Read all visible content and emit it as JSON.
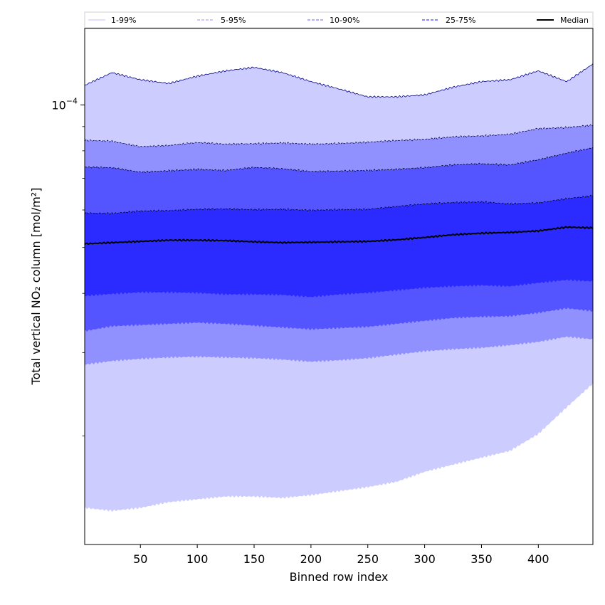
{
  "chart_data": {
    "type": "area",
    "xlabel": "Binned row index",
    "ylabel": "Total vertical NO₂ column [mol/m²]",
    "xlim": [
      1,
      448
    ],
    "ylim": [
      1.18e-05,
      0.000145
    ],
    "yscale": "log",
    "x_ticks": [
      50,
      100,
      150,
      200,
      250,
      300,
      350,
      400
    ],
    "x_tick_labels": [
      "50",
      "100",
      "150",
      "200",
      "250",
      "300",
      "350",
      "400"
    ],
    "y_major_tick": {
      "value": 0.0001,
      "base": "10",
      "exponent": "−4"
    },
    "x": [
      1,
      25,
      50,
      75,
      100,
      125,
      150,
      175,
      200,
      225,
      250,
      275,
      300,
      325,
      350,
      375,
      400,
      425,
      448
    ],
    "bands": [
      {
        "name": "1-99%",
        "color": "#ccccff",
        "lower": [
          1.41e-05,
          1.39e-05,
          1.41e-05,
          1.45e-05,
          1.47e-05,
          1.49e-05,
          1.49e-05,
          1.48e-05,
          1.5e-05,
          1.53e-05,
          1.56e-05,
          1.6e-05,
          1.68e-05,
          1.74e-05,
          1.8e-05,
          1.86e-05,
          2.02e-05,
          2.3e-05,
          2.58e-05
        ],
        "upper": [
          0.00011,
          0.000117,
          0.000113,
          0.000111,
          0.000115,
          0.000118,
          0.00012,
          0.000117,
          0.000112,
          0.000108,
          0.000104,
          0.000104,
          0.000105,
          0.000109,
          0.000112,
          0.000113,
          0.000118,
          0.000112,
          0.000122
        ]
      },
      {
        "name": "5-95%",
        "color": "#9090ff",
        "lower": [
          2.83e-05,
          2.88e-05,
          2.91e-05,
          2.93e-05,
          2.94e-05,
          2.93e-05,
          2.92e-05,
          2.9e-05,
          2.87e-05,
          2.89e-05,
          2.92e-05,
          2.97e-05,
          3.02e-05,
          3.05e-05,
          3.07e-05,
          3.11e-05,
          3.16e-05,
          3.24e-05,
          3.2e-05
        ],
        "upper": [
          8.42e-05,
          8.38e-05,
          8.16e-05,
          8.21e-05,
          8.33e-05,
          8.26e-05,
          8.28e-05,
          8.31e-05,
          8.26e-05,
          8.29e-05,
          8.34e-05,
          8.41e-05,
          8.46e-05,
          8.56e-05,
          8.6e-05,
          8.67e-05,
          8.91e-05,
          8.96e-05,
          9.06e-05
        ]
      },
      {
        "name": "10-90%",
        "color": "#5555ff",
        "lower": [
          3.33e-05,
          3.41e-05,
          3.43e-05,
          3.45e-05,
          3.47e-05,
          3.45e-05,
          3.42e-05,
          3.39e-05,
          3.36e-05,
          3.38e-05,
          3.4e-05,
          3.45e-05,
          3.5e-05,
          3.55e-05,
          3.57e-05,
          3.58e-05,
          3.64e-05,
          3.72e-05,
          3.67e-05
        ],
        "upper": [
          7.39e-05,
          7.37e-05,
          7.21e-05,
          7.26e-05,
          7.31e-05,
          7.27e-05,
          7.38e-05,
          7.33e-05,
          7.23e-05,
          7.25e-05,
          7.27e-05,
          7.31e-05,
          7.37e-05,
          7.47e-05,
          7.51e-05,
          7.47e-05,
          7.66e-05,
          7.91e-05,
          8.12e-05
        ]
      },
      {
        "name": "25-75%",
        "color": "#2b2bff",
        "lower": [
          3.95e-05,
          3.99e-05,
          4.02e-05,
          4.02e-05,
          4.01e-05,
          3.98e-05,
          3.98e-05,
          3.97e-05,
          3.93e-05,
          3.98e-05,
          4.01e-05,
          4.06e-05,
          4.11e-05,
          4.14e-05,
          4.16e-05,
          4.14e-05,
          4.21e-05,
          4.27e-05,
          4.24e-05
        ],
        "upper": [
          5.91e-05,
          5.9e-05,
          5.97e-05,
          5.98e-05,
          6.02e-05,
          6.03e-05,
          6.01e-05,
          6.02e-05,
          5.99e-05,
          6.01e-05,
          6.02e-05,
          6.1e-05,
          6.18e-05,
          6.22e-05,
          6.24e-05,
          6.18e-05,
          6.21e-05,
          6.34e-05,
          6.43e-05
        ]
      }
    ],
    "median": {
      "name": "Median",
      "color": "#000000",
      "values": [
        5.09e-05,
        5.12e-05,
        5.15e-05,
        5.18e-05,
        5.18e-05,
        5.17e-05,
        5.14e-05,
        5.12e-05,
        5.13e-05,
        5.14e-05,
        5.15e-05,
        5.19e-05,
        5.25e-05,
        5.32e-05,
        5.36e-05,
        5.38e-05,
        5.42e-05,
        5.52e-05,
        5.5e-05
      ]
    },
    "legend": {
      "position": "top",
      "entries": [
        {
          "label": "1-99%",
          "color": "#cfcfff",
          "style": "solid"
        },
        {
          "label": "5-95%",
          "color": "#a8a8ff",
          "style": "dashed"
        },
        {
          "label": "10-90%",
          "color": "#8080ff",
          "style": "dashed"
        },
        {
          "label": "25-75%",
          "color": "#4040ff",
          "style": "dashed"
        },
        {
          "label": "Median",
          "color": "#000000",
          "style": "solid"
        }
      ]
    }
  }
}
